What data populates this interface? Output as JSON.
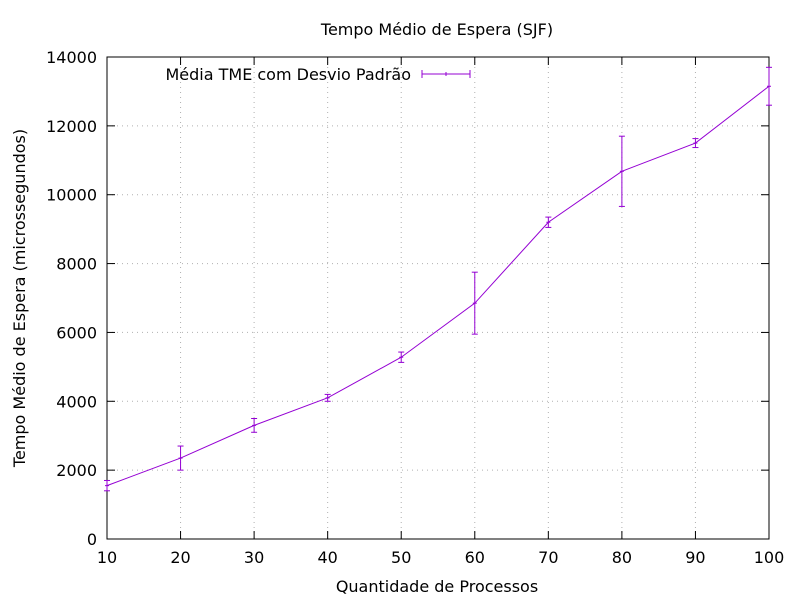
{
  "chart_data": {
    "type": "line",
    "title": "Tempo Médio de Espera (SJF)",
    "xlabel": "Quantidade de Processos",
    "ylabel": "Tempo Médio de Espera (microssegundos)",
    "x": [
      10,
      20,
      30,
      40,
      50,
      60,
      70,
      80,
      90,
      100
    ],
    "xlim": [
      10,
      100
    ],
    "ylim": [
      0,
      14000
    ],
    "xticks": [
      "10",
      "20",
      "30",
      "40",
      "50",
      "60",
      "70",
      "80",
      "90",
      "100"
    ],
    "yticks": [
      "0",
      "2000",
      "4000",
      "6000",
      "8000",
      "10000",
      "12000",
      "14000"
    ],
    "grid": true,
    "legend_position": "top-left",
    "series": [
      {
        "name": "Média TME com Desvio Padrão",
        "color": "#9400d3",
        "values": [
          1550,
          2350,
          3300,
          4100,
          5280,
          6850,
          9200,
          10680,
          11500,
          13150
        ],
        "errors": [
          150,
          350,
          200,
          100,
          150,
          900,
          150,
          1020,
          130,
          550
        ]
      }
    ]
  }
}
